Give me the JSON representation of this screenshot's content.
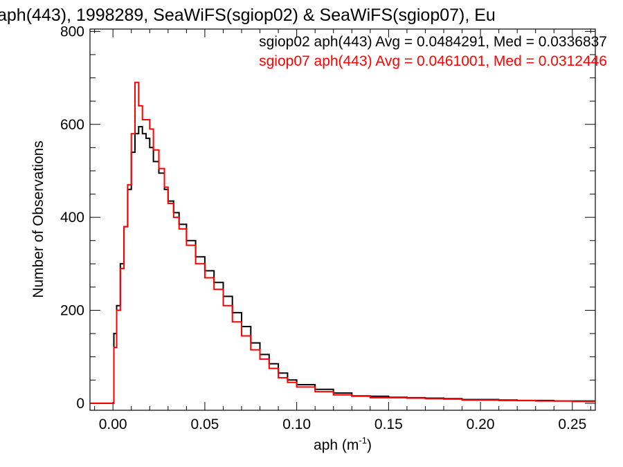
{
  "chart_data": {
    "type": "line",
    "title": "aph(443), 1998289, SeaWiFS(sgiop02) & SeaWiFS(sgiop07), Eu",
    "xlabel": "aph (m",
    "xlabel_sup": "-1",
    "xlabel_close": ")",
    "ylabel": "Number of Observations",
    "xlim": [
      -0.0125,
      0.2625
    ],
    "ylim": [
      -15,
      805
    ],
    "x_ticks": [
      0.0,
      0.05,
      0.1,
      0.15,
      0.2,
      0.25
    ],
    "x_tick_labels": [
      "0.00",
      "0.05",
      "0.10",
      "0.15",
      "0.20",
      "0.25"
    ],
    "y_ticks": [
      0,
      200,
      400,
      600,
      800
    ],
    "y_tick_labels": [
      "0",
      "200",
      "400",
      "600",
      "800"
    ],
    "grid": false,
    "legend_position": "top-right",
    "x": [
      -0.012,
      0.0,
      0.0005,
      0.002,
      0.004,
      0.006,
      0.008,
      0.01,
      0.012,
      0.014,
      0.016,
      0.018,
      0.02,
      0.022,
      0.025,
      0.028,
      0.03,
      0.033,
      0.036,
      0.04,
      0.045,
      0.05,
      0.055,
      0.06,
      0.065,
      0.07,
      0.075,
      0.08,
      0.085,
      0.09,
      0.095,
      0.1,
      0.11,
      0.12,
      0.13,
      0.14,
      0.15,
      0.16,
      0.17,
      0.18,
      0.19,
      0.2,
      0.21,
      0.22,
      0.23,
      0.24,
      0.25,
      0.262
    ],
    "series": [
      {
        "name": "sgiop02",
        "color": "#000000",
        "values": [
          0,
          0,
          150,
          210,
          300,
          380,
          460,
          540,
          580,
          595,
          580,
          570,
          550,
          520,
          495,
          460,
          435,
          410,
          385,
          350,
          315,
          285,
          260,
          230,
          195,
          165,
          130,
          105,
          85,
          65,
          50,
          40,
          30,
          22,
          16,
          15,
          13,
          12,
          11,
          10,
          8,
          8,
          7,
          6,
          6,
          5,
          5,
          5
        ]
      },
      {
        "name": "sgiop07",
        "color": "#ff0000",
        "values": [
          0,
          0,
          120,
          200,
          290,
          380,
          470,
          580,
          690,
          640,
          610,
          610,
          590,
          545,
          505,
          465,
          430,
          400,
          375,
          340,
          300,
          270,
          245,
          210,
          175,
          145,
          115,
          95,
          75,
          55,
          45,
          35,
          25,
          18,
          15,
          12,
          12,
          11,
          10,
          9,
          7,
          7,
          6,
          6,
          5,
          5,
          4,
          4
        ]
      }
    ],
    "legend": [
      {
        "text": "sgiop02 aph(443) Avg = 0.0484291, Med = 0.0336837",
        "color": "#000000"
      },
      {
        "text": "sgiop07 aph(443) Avg = 0.0461001, Med = 0.0312446",
        "color": "#ff0000"
      }
    ]
  }
}
